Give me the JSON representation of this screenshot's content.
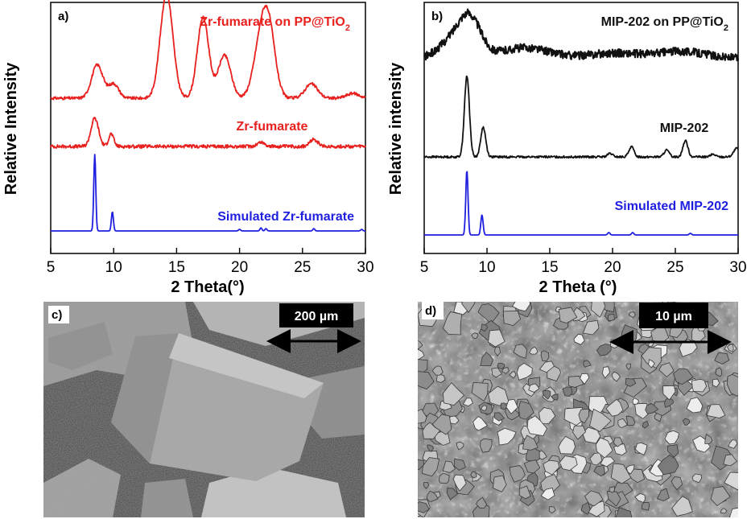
{
  "panels": {
    "a": {
      "label": "a)"
    },
    "b": {
      "label": "b)"
    },
    "c": {
      "label": "c)",
      "scale_bar": "200 µm"
    },
    "d": {
      "label": "d)",
      "scale_bar": "10 µm"
    }
  },
  "chart_data": [
    {
      "type": "line",
      "panel": "a)",
      "ylabel": "Relative Intensity",
      "xlabel": "2 Theta(°)",
      "xlim": [
        5,
        30
      ],
      "x_ticks": [
        5,
        10,
        15,
        20,
        25,
        30
      ],
      "series": [
        {
          "name": "Simulated Zr-fumarate",
          "color": "#1f1fe0",
          "offset": 0,
          "baseline": 0,
          "noise": 0,
          "peaks": [
            [
              8.5,
              100,
              0.08
            ],
            [
              9.9,
              25,
              0.08
            ],
            [
              20.0,
              2,
              0.08
            ],
            [
              21.7,
              4,
              0.08
            ],
            [
              22.1,
              3,
              0.08
            ],
            [
              25.9,
              3,
              0.08
            ],
            [
              29.7,
              2,
              0.08
            ]
          ]
        },
        {
          "name": "Zr-fumarate",
          "color": "#e8201e",
          "offset": 0,
          "baseline": 0,
          "noise": 1.2,
          "peaks": [
            [
              8.5,
              20,
              0.3
            ],
            [
              9.8,
              9,
              0.2
            ],
            [
              21.7,
              3,
              0.3
            ],
            [
              25.9,
              5,
              0.3
            ]
          ]
        },
        {
          "name": "Zr-fumarate on PP@TiO",
          "sub": "2",
          "color": "#e8201e",
          "offset": 0,
          "baseline": 0,
          "noise": 0.6,
          "peaks": [
            [
              8.7,
              14,
              0.45
            ],
            [
              10.0,
              6,
              0.4
            ],
            [
              14.2,
              44,
              0.5
            ],
            [
              17.1,
              34,
              0.45
            ],
            [
              18.8,
              18,
              0.5
            ],
            [
              21.8,
              27,
              0.6
            ],
            [
              22.4,
              18,
              0.5
            ],
            [
              25.7,
              6,
              0.5
            ],
            [
              29.0,
              2,
              0.5
            ]
          ]
        }
      ]
    },
    {
      "type": "line",
      "panel": "b)",
      "ylabel": "Relative intensity",
      "xlabel": "2 Theta (°)",
      "xlim": [
        5,
        30
      ],
      "x_ticks": [
        5,
        10,
        15,
        20,
        25,
        30
      ],
      "series": [
        {
          "name": "Simulated MIP-202",
          "color": "#1f1fe0",
          "offset": 0,
          "baseline": 0,
          "noise": 0,
          "peaks": [
            [
              8.4,
              80,
              0.09
            ],
            [
              9.6,
              25,
              0.09
            ],
            [
              19.7,
              3,
              0.09
            ],
            [
              21.6,
              3,
              0.09
            ],
            [
              26.2,
              2,
              0.09
            ]
          ]
        },
        {
          "name": "MIP-202",
          "color": "#111111",
          "offset": 0,
          "baseline": 0,
          "noise": 1.2,
          "peaks": [
            [
              8.4,
              95,
              0.2
            ],
            [
              9.7,
              35,
              0.2
            ],
            [
              19.8,
              4,
              0.2
            ],
            [
              21.5,
              12,
              0.2
            ],
            [
              24.3,
              8,
              0.2
            ],
            [
              25.8,
              19,
              0.2
            ],
            [
              28.0,
              3,
              0.2
            ],
            [
              29.9,
              10,
              0.25
            ]
          ]
        },
        {
          "name": "MIP-202 on PP@TiO",
          "sub": "2",
          "color": "#111111",
          "offset": 0,
          "baseline": 0,
          "noise": 2.2,
          "peaks": [
            [
              8.6,
              22,
              0.9
            ],
            [
              7.0,
              8,
              1.0
            ],
            [
              13.0,
              6,
              2.0
            ],
            [
              20.0,
              3,
              2.0
            ],
            [
              25.5,
              4,
              2.0
            ]
          ]
        }
      ]
    }
  ]
}
